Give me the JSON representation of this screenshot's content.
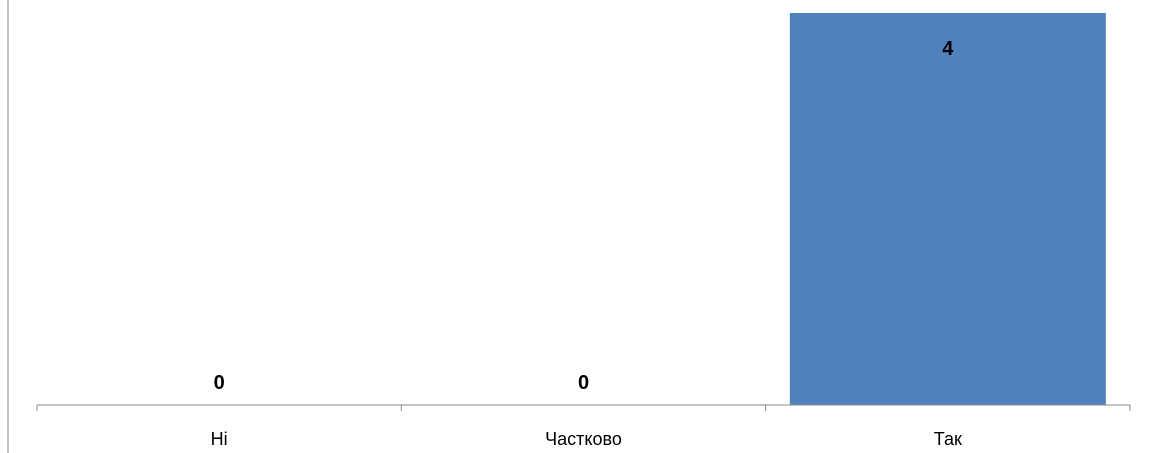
{
  "chart_data": {
    "type": "bar",
    "categories": [
      "Ні",
      "Частково",
      "Так"
    ],
    "values": [
      0,
      0,
      4
    ],
    "data_labels": [
      "0",
      "0",
      "4"
    ],
    "title": "",
    "xlabel": "",
    "ylabel": "",
    "ylim": [
      0,
      4
    ],
    "grid": false,
    "legend": "none",
    "bar_color": "#4f81bd",
    "axis_color": "#898989"
  }
}
